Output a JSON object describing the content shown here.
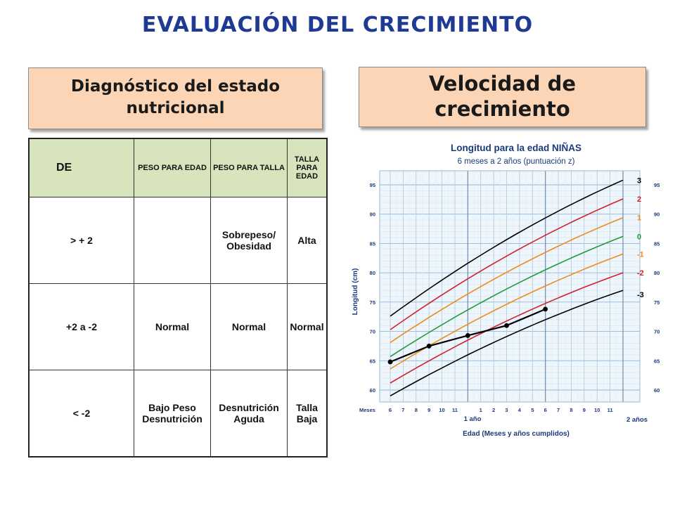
{
  "title": "EVALUACIÓN DEL CRECIMIENTO",
  "left_header": "Diagnóstico del estado nutricional",
  "right_header": "Velocidad de crecimiento",
  "table": {
    "headers": [
      "DE",
      "PESO PARA EDAD",
      "PESO PARA TALLA",
      "TALLA PARA EDAD"
    ],
    "rows": [
      [
        "> + 2",
        "",
        "Sobrepeso/ Obesidad",
        "Alta"
      ],
      [
        "+2 a -2",
        "Normal",
        "Normal",
        "Normal"
      ],
      [
        "< -2",
        "Bajo Peso Desnutrición",
        "Desnutrición Aguda",
        "Talla Baja"
      ]
    ]
  },
  "chart_data": {
    "type": "line",
    "title": "Longitud para la edad NIÑAS",
    "subtitle": "6 meses a 2 años (puntuación z)",
    "xlabel": "Edad (Meses y años cumplidos)",
    "ylabel": "Longitud (cm)",
    "x_unit_label": "Meses",
    "x_ticks": [
      "6",
      "7",
      "8",
      "9",
      "10",
      "11",
      "",
      "1",
      "2",
      "3",
      "4",
      "5",
      "6",
      "7",
      "8",
      "9",
      "10",
      "11",
      ""
    ],
    "x_major_labels": [
      "1 año",
      "2 años"
    ],
    "x_range_months": [
      6,
      24
    ],
    "ylim": [
      60,
      95
    ],
    "y_ticks": [
      60,
      65,
      70,
      75,
      80,
      85,
      90,
      95
    ],
    "grid": true,
    "series": [
      {
        "name": "3",
        "color": "#000000",
        "x": [
          6,
          24
        ],
        "y": [
          72.6,
          95.8
        ]
      },
      {
        "name": "2",
        "color": "#d0202c",
        "x": [
          6,
          24
        ],
        "y": [
          70.3,
          92.6
        ]
      },
      {
        "name": "1",
        "color": "#f08a1c",
        "x": [
          6,
          24
        ],
        "y": [
          68.1,
          89.4
        ]
      },
      {
        "name": "0",
        "color": "#1e9b3a",
        "x": [
          6,
          24
        ],
        "y": [
          65.7,
          86.2
        ]
      },
      {
        "name": "-1",
        "color": "#f08a1c",
        "x": [
          6,
          24
        ],
        "y": [
          63.6,
          83.2
        ]
      },
      {
        "name": "-2",
        "color": "#d0202c",
        "x": [
          6,
          24
        ],
        "y": [
          61.2,
          80.0
        ]
      },
      {
        "name": "-3",
        "color": "#000000",
        "x": [
          6,
          24
        ],
        "y": [
          59.0,
          77.0
        ]
      }
    ],
    "patient": {
      "x": [
        6,
        9,
        12,
        15,
        18
      ],
      "y": [
        64.8,
        67.5,
        69.3,
        71.0,
        73.8
      ]
    }
  }
}
